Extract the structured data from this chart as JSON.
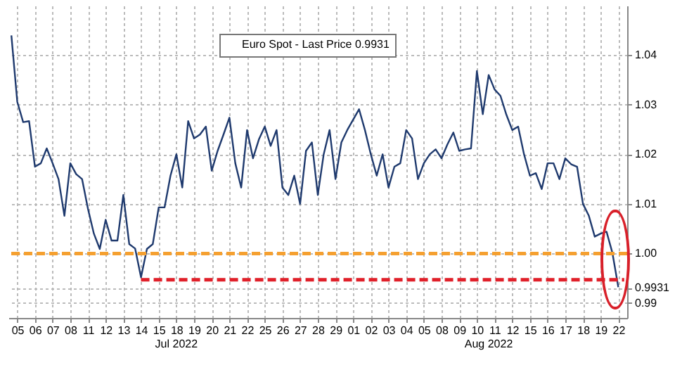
{
  "chart_data": {
    "type": "line",
    "categories": [
      null,
      "05",
      null,
      null,
      "06",
      null,
      null,
      "07",
      null,
      null,
      "08",
      null,
      null,
      "11",
      null,
      null,
      "12",
      null,
      null,
      "13",
      null,
      null,
      "14",
      null,
      null,
      "15",
      null,
      null,
      "18",
      null,
      null,
      "19",
      null,
      null,
      "20",
      null,
      null,
      "21",
      null,
      null,
      "22",
      null,
      null,
      "25",
      null,
      null,
      "26",
      null,
      null,
      "27",
      null,
      null,
      "28",
      null,
      null,
      "29",
      null,
      null,
      "01",
      null,
      null,
      "02",
      null,
      null,
      "03",
      null,
      null,
      "04",
      null,
      null,
      "05",
      null,
      null,
      "08",
      null,
      null,
      "09",
      null,
      null,
      "10",
      null,
      null,
      "11",
      null,
      null,
      "12",
      null,
      null,
      "15",
      null,
      null,
      "16",
      null,
      null,
      "17",
      null,
      null,
      "18",
      null,
      null,
      "19",
      null,
      null,
      "22",
      null
    ],
    "ylim": [
      0.987,
      1.05
    ],
    "yticks": [
      0.99,
      0.9931,
      {
        "value": 1.0,
        "label": "1.00"
      },
      1.01,
      1.02,
      1.03,
      1.04
    ],
    "grid": true,
    "legend": "top",
    "series": [
      {
        "name": "Euro Spot - Last Price 0.9931",
        "color": "#1f3a6e",
        "values": [
          1.044,
          1.0306,
          1.0265,
          1.0267,
          1.0175,
          1.0182,
          1.0212,
          1.0182,
          1.015,
          1.0076,
          1.0182,
          1.016,
          1.015,
          1.009,
          1.004,
          1.0009,
          1.0068,
          1.0026,
          1.0026,
          1.0118,
          1.0019,
          1.001,
          0.9952,
          1.0009,
          1.0019,
          1.0093,
          1.0093,
          1.0157,
          1.02,
          1.0133,
          1.0267,
          1.0232,
          1.024,
          1.0256,
          1.0167,
          1.0207,
          1.024,
          1.0274,
          1.0182,
          1.0133,
          1.0249,
          1.0192,
          1.023,
          1.0256,
          1.0217,
          1.0249,
          1.0133,
          1.0118,
          1.0157,
          1.01,
          1.0207,
          1.0224,
          1.0118,
          1.02,
          1.0249,
          1.015,
          1.0224,
          1.0249,
          1.027,
          1.0291,
          1.0249,
          1.02,
          1.0157,
          1.02,
          1.0133,
          1.0175,
          1.0182,
          1.0249,
          1.0232,
          1.015,
          1.0182,
          1.02,
          1.021,
          1.0192,
          1.022,
          1.0244,
          1.0207,
          1.021,
          1.0212,
          1.0368,
          1.0281,
          1.036,
          1.0331,
          1.0318,
          1.028,
          1.0249,
          1.0256,
          1.02,
          1.0157,
          1.0162,
          1.013,
          1.0182,
          1.0182,
          1.015,
          1.0192,
          1.018,
          1.0175,
          1.01,
          1.0076,
          1.0034,
          1.004,
          1.0044,
          1.0001,
          0.9932,
          null
        ]
      },
      {
        "color": "#e0202a",
        "line_style": "dashed",
        "values": [
          null,
          null,
          null,
          null,
          null,
          null,
          null,
          null,
          null,
          null,
          null,
          null,
          null,
          null,
          null,
          null,
          null,
          null,
          null,
          null,
          null,
          null,
          0.9947,
          0.9947,
          0.9947,
          0.9947,
          0.9947,
          0.9947,
          0.9947,
          0.9947,
          0.9947,
          0.9947,
          0.9947,
          0.9947,
          0.9947,
          0.9947,
          0.9947,
          0.9947,
          0.9947,
          0.9947,
          0.9947,
          0.9947,
          0.9947,
          0.9947,
          0.9947,
          0.9947,
          0.9947,
          0.9947,
          0.9947,
          0.9947,
          0.9947,
          0.9947,
          0.9947,
          0.9947,
          0.9947,
          0.9947,
          0.9947,
          0.9947,
          0.9947,
          0.9947,
          0.9947,
          0.9947,
          0.9947,
          0.9947,
          0.9947,
          0.9947,
          0.9947,
          0.9947,
          0.9947,
          0.9947,
          0.9947,
          0.9947,
          0.9947,
          0.9947,
          0.9947,
          0.9947,
          0.9947,
          0.9947,
          0.9947,
          0.9947,
          0.9947,
          0.9947,
          0.9947,
          0.9947,
          0.9947,
          0.9947,
          0.9947,
          0.9947,
          0.9947,
          0.9947,
          0.9947,
          0.9947,
          0.9947,
          0.9947,
          0.9947,
          0.9947,
          0.9947,
          0.9947,
          0.9947,
          0.9947,
          0.9947,
          0.9947,
          0.9947,
          0.9947,
          0.9947
        ]
      }
    ],
    "ref_lines": [
      {
        "axis": "y",
        "value": 1.0,
        "color": "#f5a030",
        "line_style": "dashed"
      }
    ],
    "annotations": [
      "Jul 2022",
      "Aug 2022"
    ]
  }
}
